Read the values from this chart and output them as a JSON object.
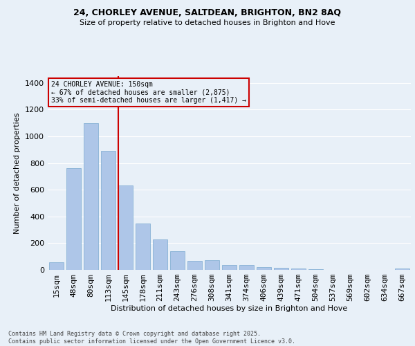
{
  "title_line1": "24, CHORLEY AVENUE, SALTDEAN, BRIGHTON, BN2 8AQ",
  "title_line2": "Size of property relative to detached houses in Brighton and Hove",
  "xlabel": "Distribution of detached houses by size in Brighton and Hove",
  "ylabel": "Number of detached properties",
  "categories": [
    "15sqm",
    "48sqm",
    "80sqm",
    "113sqm",
    "145sqm",
    "178sqm",
    "211sqm",
    "243sqm",
    "276sqm",
    "308sqm",
    "341sqm",
    "374sqm",
    "406sqm",
    "439sqm",
    "471sqm",
    "504sqm",
    "537sqm",
    "569sqm",
    "602sqm",
    "634sqm",
    "667sqm"
  ],
  "values": [
    55,
    760,
    1100,
    890,
    630,
    345,
    230,
    140,
    65,
    75,
    35,
    35,
    20,
    13,
    8,
    5,
    1,
    0,
    0,
    0,
    8
  ],
  "bar_color": "#aec6e8",
  "bar_edge_color": "#7aaad0",
  "vline_color": "#cc0000",
  "annotation_text": "24 CHORLEY AVENUE: 150sqm\n← 67% of detached houses are smaller (2,875)\n33% of semi-detached houses are larger (1,417) →",
  "annotation_box_color": "#cc0000",
  "ylim": [
    0,
    1450
  ],
  "yticks": [
    0,
    200,
    400,
    600,
    800,
    1000,
    1200,
    1400
  ],
  "bg_color": "#e8f0f8",
  "grid_color": "#ffffff",
  "footer_line1": "Contains HM Land Registry data © Crown copyright and database right 2025.",
  "footer_line2": "Contains public sector information licensed under the Open Government Licence v3.0."
}
